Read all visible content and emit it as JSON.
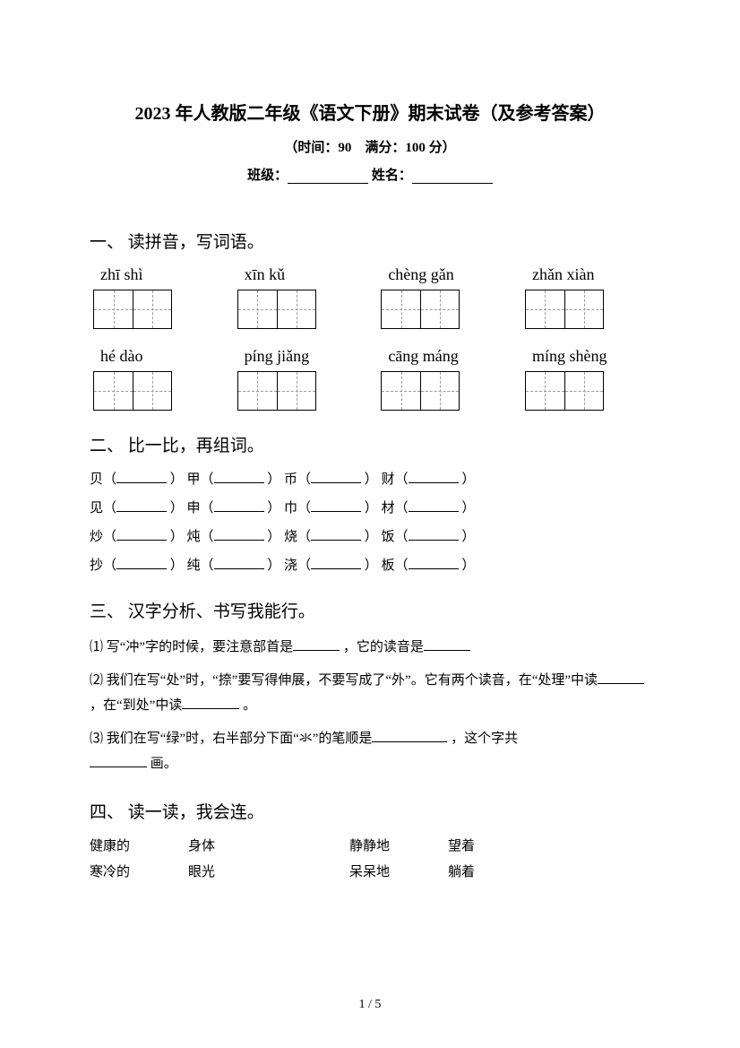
{
  "header": {
    "title": "2023 年人教版二年级《语文下册》期末试卷（及参考答案）",
    "subtitle": "（时间：90　满分：100 分）",
    "class_label": "班级：",
    "name_label": "姓名："
  },
  "section1": {
    "title": "一、 读拼音，写词语。",
    "row1": [
      "zhī  shì",
      "xīn  kǔ",
      "chèng gǎn",
      "zhǎn xiàn"
    ],
    "row2": [
      "hé  dào",
      "píng  jiǎng",
      "cāng máng",
      "míng shèng"
    ]
  },
  "section2": {
    "title": "二、 比一比，再组词。",
    "lines": [
      [
        "贝（",
        "） 甲（",
        "） 币（",
        "） 财（",
        "）"
      ],
      [
        "见（",
        "） 申（",
        "） 巾（",
        "） 材（",
        "）"
      ],
      [
        "炒（",
        "） 炖（",
        "） 烧（",
        "） 饭（",
        "）"
      ],
      [
        "抄（",
        "） 纯（",
        "） 浇（",
        "） 板（",
        "）"
      ]
    ]
  },
  "section3": {
    "title": "三、 汉字分析、书写我能行。",
    "item1a": "⑴ 写“冲”字的时候，要注意部首是",
    "item1b": "，它的读音是",
    "item2a": "⑵ 我们在写“处”时，“捺”要写得伸展，不要写成了“外”。它有两个读音，在“处理”中读",
    "item2b": "，在“到处”中读",
    "item2c": "。",
    "item3a": "⑶ 我们在写“绿”时，右半部分下面“氺”的笔顺是",
    "item3b": "，这个字共",
    "item3c": "画。"
  },
  "section4": {
    "title": "四、 读一读，我会连。",
    "rows": [
      [
        "健康的",
        "身体",
        "静静地",
        "望着"
      ],
      [
        "寒冷的",
        "眼光",
        "呆呆地",
        "躺着"
      ]
    ]
  },
  "footer": {
    "page": "1 / 5"
  }
}
